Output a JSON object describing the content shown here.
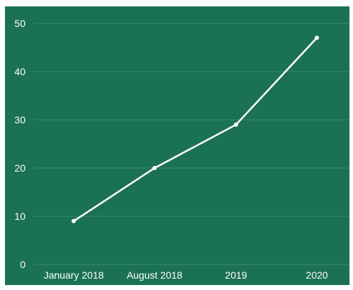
{
  "chart_data": {
    "type": "line",
    "title": "",
    "xlabel": "",
    "ylabel": "",
    "categories": [
      "January 2018",
      "August 2018",
      "2019",
      "2020"
    ],
    "series": [
      {
        "values": [
          9,
          20,
          29,
          47
        ]
      }
    ],
    "ylim": [
      0,
      50
    ],
    "yticks": [
      0,
      10,
      20,
      30,
      40,
      50
    ],
    "grid": true,
    "legend": "none",
    "colors": {
      "background": "#1b7155",
      "line": "#ffffff",
      "grid": "#3a8a6f",
      "text": "#ffffff"
    }
  }
}
